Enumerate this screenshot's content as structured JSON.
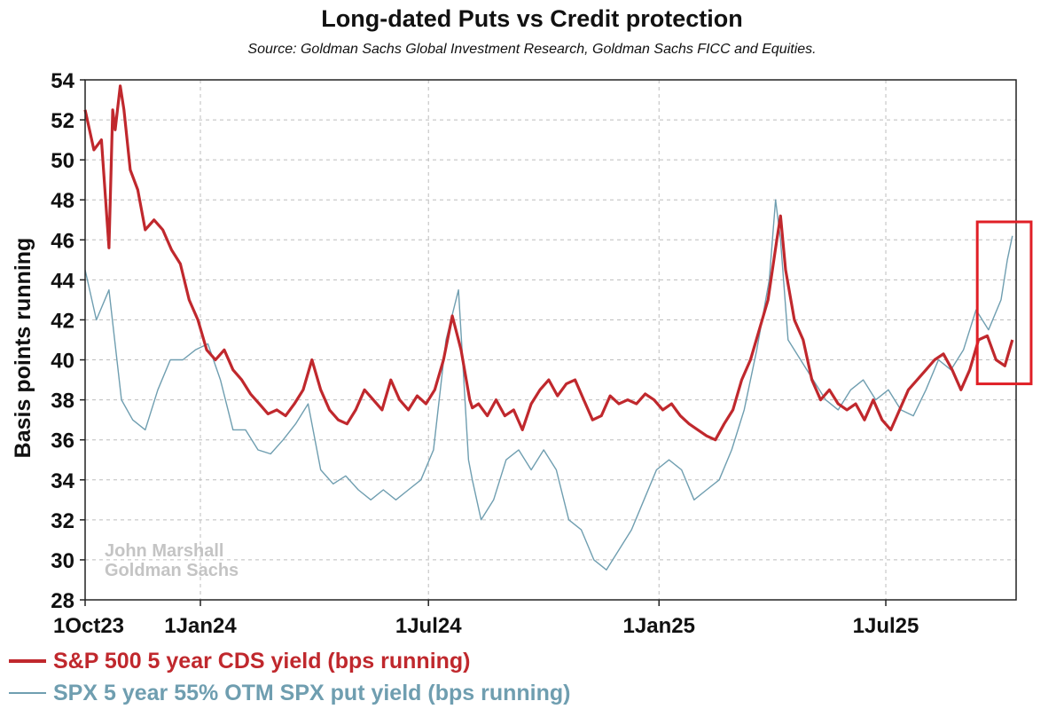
{
  "chart_data": {
    "type": "line",
    "title": "Long-dated Puts vs Credit protection",
    "subtitle": "Source: Goldman Sachs Global Investment Research, Goldman Sachs FICC and Equities.",
    "ylabel": "Basis points running",
    "xlabel": "",
    "ylim": [
      28,
      54
    ],
    "yticks": [
      28,
      30,
      32,
      34,
      36,
      38,
      40,
      42,
      44,
      46,
      48,
      50,
      52,
      54
    ],
    "xlim": [
      "2023-10-01",
      "2025-10-13"
    ],
    "xticks": [
      {
        "date": "2023-10-01",
        "label": "1Oct23"
      },
      {
        "date": "2024-01-01",
        "label": "1Jan24"
      },
      {
        "date": "2024-07-01",
        "label": "1Jul24"
      },
      {
        "date": "2025-01-01",
        "label": "1Jan25"
      },
      {
        "date": "2025-07-01",
        "label": "1Jul25"
      }
    ],
    "grid": true,
    "watermark": [
      "John Marshall",
      "Goldman Sachs"
    ],
    "annotation": "red box highlighting latest values (put yield rising to ~46)",
    "series": [
      {
        "name": "S&P 500 5 year CDS yield (bps running)",
        "color": "#c0282d",
        "x": [
          "2023-10-01",
          "2023-10-08",
          "2023-10-14",
          "2023-10-20",
          "2023-10-23",
          "2023-10-25",
          "2023-10-29",
          "2023-11-01",
          "2023-11-06",
          "2023-11-12",
          "2023-11-18",
          "2023-11-25",
          "2023-12-02",
          "2023-12-09",
          "2023-12-16",
          "2023-12-23",
          "2023-12-30",
          "2024-01-06",
          "2024-01-13",
          "2024-01-20",
          "2024-01-27",
          "2024-02-03",
          "2024-02-10",
          "2024-02-17",
          "2024-02-24",
          "2024-03-02",
          "2024-03-09",
          "2024-03-16",
          "2024-03-23",
          "2024-03-30",
          "2024-04-06",
          "2024-04-13",
          "2024-04-20",
          "2024-04-27",
          "2024-05-04",
          "2024-05-11",
          "2024-05-18",
          "2024-05-25",
          "2024-06-01",
          "2024-06-08",
          "2024-06-15",
          "2024-06-22",
          "2024-06-29",
          "2024-07-06",
          "2024-07-13",
          "2024-07-20",
          "2024-07-27",
          "2024-08-03",
          "2024-08-05",
          "2024-08-10",
          "2024-08-17",
          "2024-08-24",
          "2024-08-31",
          "2024-09-07",
          "2024-09-14",
          "2024-09-21",
          "2024-09-28",
          "2024-10-05",
          "2024-10-12",
          "2024-10-19",
          "2024-10-26",
          "2024-11-02",
          "2024-11-09",
          "2024-11-16",
          "2024-11-23",
          "2024-11-30",
          "2024-12-07",
          "2024-12-14",
          "2024-12-21",
          "2024-12-28",
          "2025-01-04",
          "2025-01-11",
          "2025-01-18",
          "2025-01-25",
          "2025-02-01",
          "2025-02-08",
          "2025-02-15",
          "2025-02-22",
          "2025-03-01",
          "2025-03-08",
          "2025-03-15",
          "2025-03-22",
          "2025-03-29",
          "2025-04-05",
          "2025-04-08",
          "2025-04-12",
          "2025-04-19",
          "2025-04-26",
          "2025-05-03",
          "2025-05-10",
          "2025-05-17",
          "2025-05-24",
          "2025-05-31",
          "2025-06-07",
          "2025-06-14",
          "2025-06-21",
          "2025-06-28",
          "2025-07-05",
          "2025-07-12",
          "2025-07-19",
          "2025-07-26",
          "2025-08-02",
          "2025-08-09",
          "2025-08-16",
          "2025-08-23",
          "2025-08-30",
          "2025-09-06",
          "2025-09-13",
          "2025-09-20",
          "2025-09-27",
          "2025-10-04",
          "2025-10-10"
        ],
        "values": [
          52.5,
          50.5,
          51.0,
          45.6,
          52.5,
          51.5,
          53.7,
          52.5,
          49.5,
          48.5,
          46.5,
          47.0,
          46.5,
          45.5,
          44.8,
          43.0,
          42.0,
          40.5,
          40.0,
          40.5,
          39.5,
          39.0,
          38.3,
          37.8,
          37.3,
          37.5,
          37.2,
          37.8,
          38.5,
          40.0,
          38.5,
          37.5,
          37.0,
          36.8,
          37.5,
          38.5,
          38.0,
          37.5,
          39.0,
          38.0,
          37.5,
          38.2,
          37.8,
          38.5,
          40.0,
          42.2,
          40.5,
          38.0,
          37.6,
          37.8,
          37.2,
          38.0,
          37.2,
          37.5,
          36.5,
          37.8,
          38.5,
          39.0,
          38.2,
          38.8,
          39.0,
          38.0,
          37.0,
          37.2,
          38.2,
          37.8,
          38.0,
          37.8,
          38.3,
          38.0,
          37.5,
          37.8,
          37.2,
          36.8,
          36.5,
          36.2,
          36.0,
          36.8,
          37.5,
          39.0,
          40.0,
          41.5,
          43.0,
          46.0,
          47.2,
          44.5,
          42.0,
          41.0,
          39.0,
          38.0,
          38.5,
          37.8,
          37.5,
          37.8,
          37.0,
          38.0,
          37.0,
          36.5,
          37.5,
          38.5,
          39.0,
          39.5,
          40.0,
          40.3,
          39.5,
          38.5,
          39.5,
          41.0,
          41.2,
          40.0,
          39.7,
          41.0
        ]
      },
      {
        "name": "SPX 5 year 55% OTM SPX put yield (bps running)",
        "color": "#6f9eb0",
        "x": [
          "2023-10-01",
          "2023-10-10",
          "2023-10-20",
          "2023-10-30",
          "2023-11-08",
          "2023-11-18",
          "2023-11-28",
          "2023-12-08",
          "2023-12-18",
          "2023-12-28",
          "2024-01-07",
          "2024-01-17",
          "2024-01-27",
          "2024-02-06",
          "2024-02-16",
          "2024-02-26",
          "2024-03-07",
          "2024-03-17",
          "2024-03-27",
          "2024-04-06",
          "2024-04-16",
          "2024-04-26",
          "2024-05-06",
          "2024-05-16",
          "2024-05-26",
          "2024-06-05",
          "2024-06-15",
          "2024-06-25",
          "2024-07-05",
          "2024-07-15",
          "2024-07-25",
          "2024-08-02",
          "2024-08-05",
          "2024-08-12",
          "2024-08-22",
          "2024-09-01",
          "2024-09-11",
          "2024-09-21",
          "2024-10-01",
          "2024-10-11",
          "2024-10-21",
          "2024-10-31",
          "2024-11-10",
          "2024-11-20",
          "2024-11-30",
          "2024-12-10",
          "2024-12-20",
          "2024-12-30",
          "2025-01-09",
          "2025-01-19",
          "2025-01-29",
          "2025-02-08",
          "2025-02-18",
          "2025-02-28",
          "2025-03-10",
          "2025-03-20",
          "2025-03-30",
          "2025-04-04",
          "2025-04-08",
          "2025-04-14",
          "2025-04-24",
          "2025-05-04",
          "2025-05-14",
          "2025-05-24",
          "2025-06-03",
          "2025-06-13",
          "2025-06-23",
          "2025-07-03",
          "2025-07-13",
          "2025-07-23",
          "2025-08-02",
          "2025-08-12",
          "2025-08-22",
          "2025-09-01",
          "2025-09-11",
          "2025-09-21",
          "2025-10-01",
          "2025-10-06",
          "2025-10-10"
        ],
        "values": [
          44.5,
          42.0,
          43.5,
          38.0,
          37.0,
          36.5,
          38.5,
          40.0,
          40.0,
          40.5,
          40.8,
          39.0,
          36.5,
          36.5,
          35.5,
          35.3,
          36.0,
          36.8,
          37.8,
          34.5,
          33.8,
          34.2,
          33.5,
          33.0,
          33.5,
          33.0,
          33.5,
          34.0,
          35.5,
          41.0,
          43.5,
          35.0,
          34.0,
          32.0,
          33.0,
          35.0,
          35.5,
          34.5,
          35.5,
          34.5,
          32.0,
          31.5,
          30.0,
          29.5,
          30.5,
          31.5,
          33.0,
          34.5,
          35.0,
          34.5,
          33.0,
          33.5,
          34.0,
          35.5,
          37.5,
          40.5,
          44.0,
          48.0,
          46.0,
          41.0,
          40.0,
          39.0,
          38.0,
          37.5,
          38.5,
          39.0,
          38.0,
          38.5,
          37.5,
          37.2,
          38.5,
          40.0,
          39.5,
          40.5,
          42.5,
          41.5,
          43.0,
          45.0,
          46.2
        ]
      }
    ]
  }
}
